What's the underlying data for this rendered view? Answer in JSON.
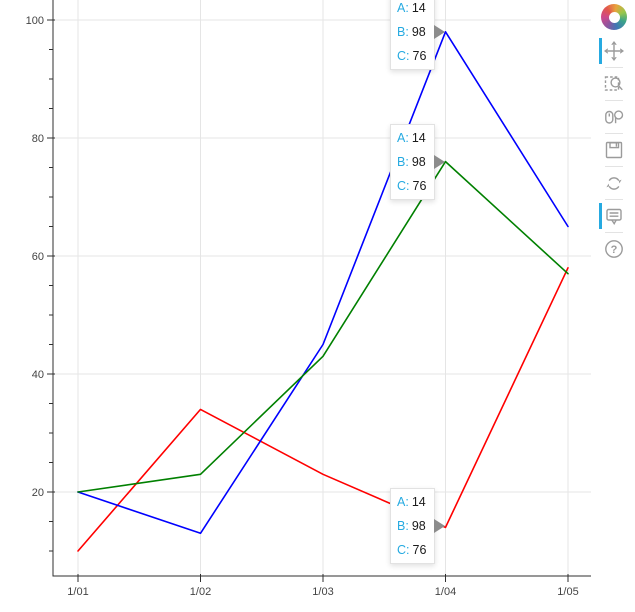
{
  "chart_data": {
    "type": "line",
    "x": [
      "1/01",
      "1/02",
      "1/03",
      "1/04",
      "1/05"
    ],
    "y_ticks": [
      20,
      40,
      60,
      80,
      100
    ],
    "ylim": [
      5.8,
      103.4
    ],
    "grid": true,
    "legend": "none",
    "series": [
      {
        "name": "A",
        "color": "#ff0000",
        "values": [
          10,
          34,
          23,
          14,
          58
        ]
      },
      {
        "name": "B",
        "color": "#0000ff",
        "values": [
          20,
          13,
          45,
          98,
          65
        ]
      },
      {
        "name": "C",
        "color": "#008000",
        "values": [
          20,
          23,
          43,
          76,
          57
        ]
      }
    ],
    "hover_x": "1/04"
  },
  "tooltips": [
    {
      "rows": [
        {
          "label": "A:",
          "value": "14"
        },
        {
          "label": "B:",
          "value": "98"
        },
        {
          "label": "C:",
          "value": "76"
        }
      ]
    },
    {
      "rows": [
        {
          "label": "A:",
          "value": "14"
        },
        {
          "label": "B:",
          "value": "98"
        },
        {
          "label": "C:",
          "value": "76"
        }
      ]
    },
    {
      "rows": [
        {
          "label": "A:",
          "value": "14"
        },
        {
          "label": "B:",
          "value": "98"
        },
        {
          "label": "C:",
          "value": "76"
        }
      ]
    }
  ],
  "toolbar": {
    "logo": "bokeh",
    "help_glyph": "?",
    "tools": [
      {
        "id": "pan",
        "active": true
      },
      {
        "id": "box-zoom",
        "active": false
      },
      {
        "id": "wheel-zoom",
        "active": false
      },
      {
        "id": "save",
        "active": false
      },
      {
        "id": "reset",
        "active": false
      },
      {
        "id": "hover",
        "active": true
      },
      {
        "id": "help",
        "active": false
      }
    ]
  },
  "colors": {
    "accent": "#26aae1",
    "grid": "#e5e5e5",
    "axis": "#2f2f2f",
    "tick_label": "#444444",
    "tooltip_label": "#26aae1",
    "tooltip_value": "#1b1b1b",
    "tooltip_arrow": "#8c8c8c",
    "icon": "#9b9b9b"
  }
}
